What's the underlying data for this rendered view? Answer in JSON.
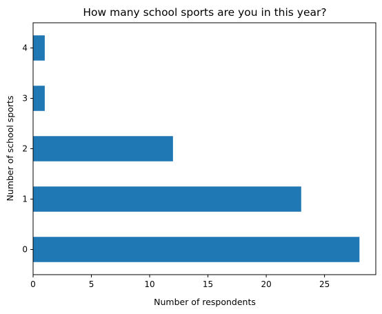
{
  "chart_data": {
    "type": "bar",
    "orientation": "horizontal",
    "title": "How many school sports are you in this year?",
    "xlabel": "Number of respondents",
    "ylabel": "Number of school sports",
    "categories": [
      "0",
      "1",
      "2",
      "3",
      "4"
    ],
    "values": [
      28,
      23,
      12,
      1,
      1
    ],
    "xlim": [
      0,
      29.4
    ],
    "xticks": [
      0,
      5,
      10,
      15,
      20,
      25
    ],
    "grid": false,
    "legend": "none",
    "bar_color": "#1f77b4"
  }
}
